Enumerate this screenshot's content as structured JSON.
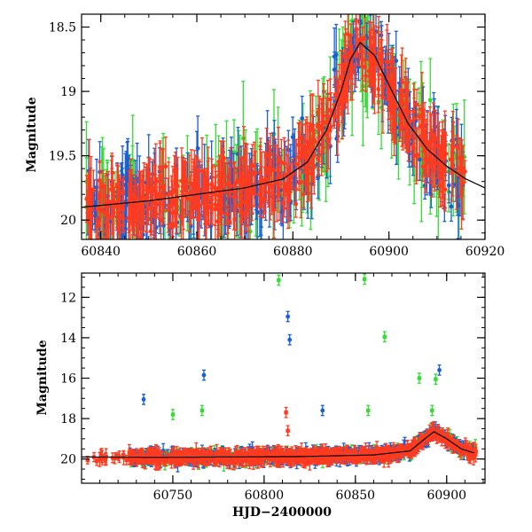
{
  "chart_data": [
    {
      "type": "scatter",
      "panel": "top",
      "title": "",
      "xlabel": "",
      "ylabel": "Magnitude",
      "xlim": [
        60836,
        60920
      ],
      "ylim": [
        20.15,
        18.4
      ],
      "y_inverted": true,
      "x_ticks": [
        60840,
        60860,
        60880,
        60900,
        60920
      ],
      "y_ticks": [
        18.5,
        19,
        19.5,
        20
      ],
      "x_tick_labels": [
        "60840",
        "60860",
        "60880",
        "60900",
        "60920"
      ],
      "y_tick_labels": [
        "18.5",
        "19",
        "19.5",
        "20"
      ],
      "legend": "none",
      "grid": false,
      "series": [
        {
          "color": "#ff3b1f",
          "marker": "circle",
          "note": "dense photometry with error bars"
        },
        {
          "color": "#1a5fd6",
          "marker": "circle"
        },
        {
          "color": "#33dd33",
          "marker": "circle"
        }
      ],
      "model_curve": {
        "color": "#000000",
        "x": [
          60836,
          60850,
          60860,
          60870,
          60878,
          60883,
          60887,
          60890,
          60892,
          60894,
          60897,
          60900,
          60904,
          60908,
          60912,
          60916,
          60920
        ],
        "y": [
          19.9,
          19.85,
          19.8,
          19.75,
          19.68,
          19.55,
          19.3,
          19.0,
          18.75,
          18.62,
          18.72,
          18.95,
          19.25,
          19.45,
          19.58,
          19.68,
          19.75
        ]
      }
    },
    {
      "type": "scatter",
      "panel": "bottom",
      "title": "",
      "xlabel": "HJD−2400000",
      "ylabel": "Magnitude",
      "xlim": [
        60700,
        60921
      ],
      "ylim": [
        21.2,
        10.8
      ],
      "y_inverted": true,
      "x_ticks": [
        60750,
        60800,
        60850,
        60900
      ],
      "y_ticks": [
        12,
        14,
        16,
        18,
        20
      ],
      "x_tick_labels": [
        "60750",
        "60800",
        "60850",
        "60900"
      ],
      "y_tick_labels": [
        "12",
        "14",
        "16",
        "18",
        "20"
      ],
      "legend": "none",
      "grid": false,
      "series": [
        {
          "color": "#ff3b1f",
          "marker": "square",
          "outliers": [
            {
              "x": 60812,
              "y": 17.7
            },
            {
              "x": 60813,
              "y": 18.6
            }
          ]
        },
        {
          "color": "#1a5fd6",
          "marker": "circle",
          "outliers": [
            {
              "x": 60734,
              "y": 17.05
            },
            {
              "x": 60767,
              "y": 15.85
            },
            {
              "x": 60813,
              "y": 12.95
            },
            {
              "x": 60814,
              "y": 14.1
            },
            {
              "x": 60832,
              "y": 17.6
            },
            {
              "x": 60896,
              "y": 15.6
            }
          ]
        },
        {
          "color": "#33dd33",
          "marker": "square",
          "outliers": [
            {
              "x": 60750,
              "y": 17.8
            },
            {
              "x": 60766,
              "y": 17.6
            },
            {
              "x": 60808,
              "y": 11.15
            },
            {
              "x": 60855,
              "y": 11.1
            },
            {
              "x": 60857,
              "y": 17.6
            },
            {
              "x": 60866,
              "y": 13.95
            },
            {
              "x": 60885,
              "y": 16.0
            },
            {
              "x": 60892,
              "y": 17.6
            },
            {
              "x": 60894,
              "y": 16.05
            }
          ]
        }
      ],
      "model_curve": {
        "color": "#000000",
        "x": [
          60700,
          60740,
          60780,
          60820,
          60860,
          60880,
          60888,
          60893,
          60900,
          60908,
          60915
        ],
        "y": [
          19.9,
          19.92,
          19.9,
          19.88,
          19.8,
          19.6,
          19.0,
          18.65,
          19.0,
          19.5,
          19.7
        ]
      }
    }
  ]
}
